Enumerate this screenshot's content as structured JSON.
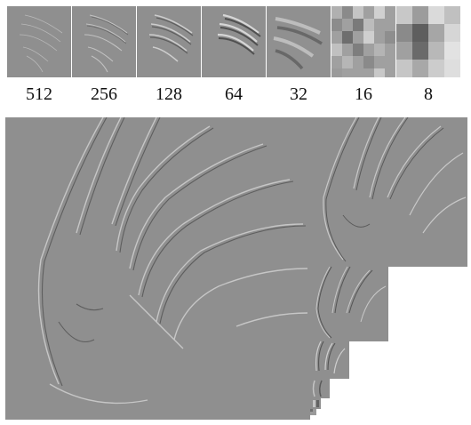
{
  "figure": {
    "scale_labels": [
      "512",
      "256",
      "128",
      "64",
      "32",
      "16",
      "8"
    ],
    "colors": {
      "background": "#ffffff",
      "image_gray": "#8f8f8f",
      "edge_light": "#c9c9c9",
      "edge_dark": "#5e5e5e"
    }
  }
}
